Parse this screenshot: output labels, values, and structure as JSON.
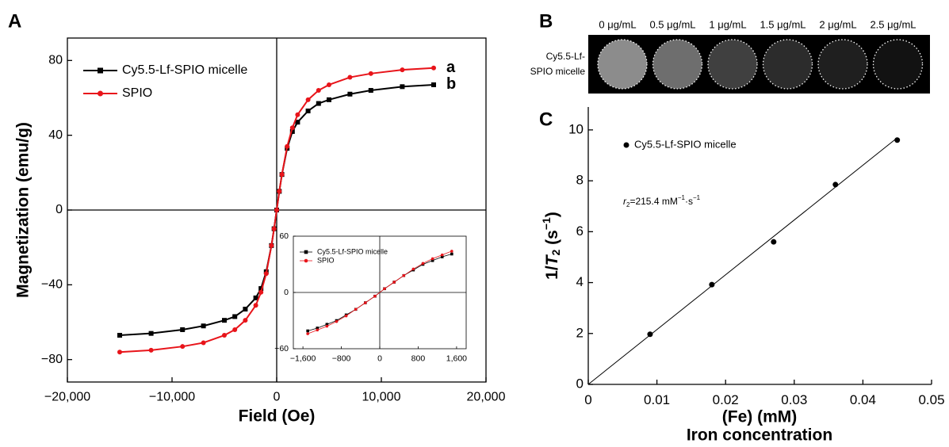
{
  "chart_data": [
    {
      "type": "line",
      "panel_label": "A",
      "x_label": "Field (Oe)",
      "y_label": "Magnetization (emu/g)",
      "xlim": [
        -20000,
        20000
      ],
      "ylim": [
        -92,
        92
      ],
      "xticks": [
        {
          "value": -20000,
          "label": "−20,000"
        },
        {
          "value": -10000,
          "label": "−10,000"
        },
        0,
        {
          "value": 10000,
          "label": "10,000"
        },
        {
          "value": 20000,
          "label": "20,000"
        }
      ],
      "yticks": [
        {
          "value": -80,
          "label": "−80"
        },
        {
          "value": -40,
          "label": "−40"
        },
        0,
        40,
        80
      ],
      "legend": "top-left",
      "x": [
        -15000,
        -12000,
        -9000,
        -7000,
        -5000,
        -4000,
        -3000,
        -2000,
        -1500,
        -1000,
        -500,
        -250,
        0,
        250,
        500,
        1000,
        1500,
        2000,
        3000,
        4000,
        5000,
        7000,
        9000,
        12000,
        15000
      ],
      "series": [
        {
          "name": "Cy5.5-Lf-SPIO micelle",
          "color": "#000000",
          "marker": "square",
          "end_label": "b",
          "values": [
            -67,
            -66,
            -64,
            -62,
            -59,
            -57,
            -53,
            -47,
            -42,
            -33,
            -19,
            -10,
            0,
            10,
            19,
            33,
            42,
            47,
            53,
            57,
            59,
            62,
            64,
            66,
            67
          ]
        },
        {
          "name": "SPIO",
          "color": "#e8141a",
          "marker": "circle",
          "end_label": "a",
          "values": [
            -76,
            -75,
            -73,
            -71,
            -67,
            -64,
            -59,
            -51,
            -44,
            -34,
            -19,
            -10,
            0,
            10,
            19,
            34,
            44,
            51,
            59,
            64,
            67,
            71,
            73,
            75,
            76
          ]
        }
      ]
    },
    {
      "type": "line",
      "xlim": [
        -1800,
        1800
      ],
      "ylim": [
        -60,
        60
      ],
      "xticks": [
        {
          "value": -1600,
          "label": "−1,600"
        },
        {
          "value": -800,
          "label": "−800"
        },
        0,
        800,
        {
          "value": 1600,
          "label": "1,600"
        }
      ],
      "yticks": [
        {
          "value": -60,
          "label": "−60"
        },
        0,
        60
      ],
      "legend": "top-left",
      "x": [
        -1500,
        -1300,
        -1100,
        -900,
        -700,
        -500,
        -300,
        -100,
        100,
        300,
        500,
        700,
        900,
        1100,
        1300,
        1500
      ],
      "series": [
        {
          "name": "Cy5.5-Lf-SPIO micelle",
          "color": "#000000",
          "marker": "square",
          "values": [
            -41,
            -38,
            -34,
            -30,
            -24,
            -18,
            -11,
            -4,
            4,
            11,
            18,
            24,
            30,
            34,
            38,
            41
          ]
        },
        {
          "name": "SPIO",
          "color": "#e8141a",
          "marker": "circle",
          "values": [
            -44,
            -40,
            -36,
            -31,
            -25,
            -18,
            -11,
            -4,
            4,
            11,
            18,
            25,
            31,
            36,
            40,
            44
          ]
        }
      ]
    },
    {
      "type": "scatter",
      "panel_label": "C",
      "x_label": "(Fe) (mM)",
      "x_label_2": "Iron concentration",
      "y_label": {
        "prefix": "1/",
        "var": "T",
        "sub": "2",
        "unit": " (s",
        "sup": "−1",
        "close": ")"
      },
      "xlim": [
        0,
        0.05
      ],
      "ylim": [
        0,
        10.9
      ],
      "xticks": [
        0,
        0.01,
        0.02,
        0.03,
        0.04,
        0.05
      ],
      "yticks": [
        0,
        2,
        4,
        6,
        8,
        10
      ],
      "legend": "top-left",
      "series": [
        {
          "name": "Cy5.5-Lf-SPIO micelle",
          "color": "#000000",
          "x": [
            0.009,
            0.018,
            0.027,
            0.036,
            0.045
          ],
          "values": [
            1.97,
            3.92,
            5.6,
            7.85,
            9.6
          ]
        }
      ],
      "fit_line": {
        "x": [
          0,
          0.045
        ],
        "y": [
          0,
          9.69
        ]
      },
      "annotation": {
        "symbol": "r",
        "sub": "2",
        "text": "=215.4 mM",
        "sup1": "−1",
        "mid": "·s",
        "sup2": "−1"
      }
    }
  ],
  "image_panel": {
    "panel_label": "B",
    "row_label": "Cy5.5-Lf-SPIO micelle",
    "columns": [
      "0 μg/mL",
      "0.5 μg/mL",
      "1 μg/mL",
      "1.5 μg/mL",
      "2 μg/mL",
      "2.5 μg/mL"
    ]
  }
}
